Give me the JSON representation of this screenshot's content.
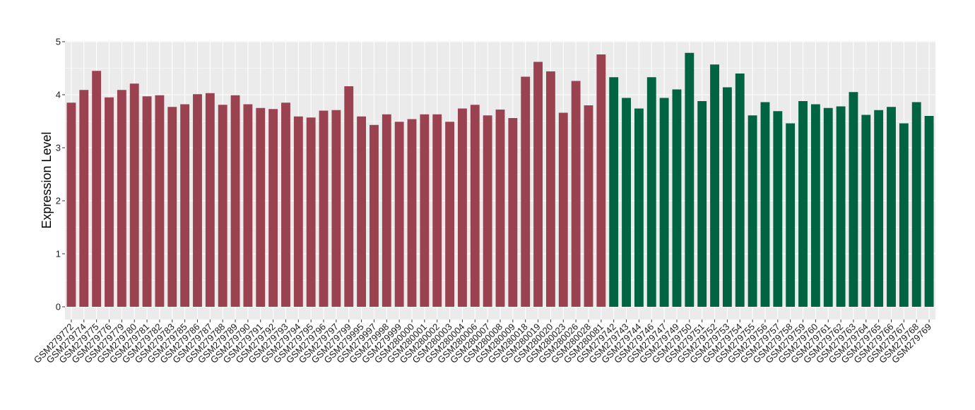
{
  "chart_data": {
    "type": "bar",
    "title": "",
    "xlabel": "",
    "ylabel": "Expression Level",
    "ylim": [
      0,
      5
    ],
    "yticks": [
      "0",
      "1",
      "2",
      "3",
      "4",
      "5"
    ],
    "grid": true,
    "colors": {
      "group1": "#9b4250",
      "group2": "#006341",
      "panel": "#ebebeb",
      "grid": "#ffffff"
    },
    "categories": [
      "GSM279772",
      "GSM279774",
      "GSM279775",
      "GSM279776",
      "GSM279779",
      "GSM279780",
      "GSM279781",
      "GSM279782",
      "GSM279783",
      "GSM279785",
      "GSM279786",
      "GSM279787",
      "GSM279788",
      "GSM279789",
      "GSM279790",
      "GSM279791",
      "GSM279792",
      "GSM279793",
      "GSM279794",
      "GSM279795",
      "GSM279796",
      "GSM279797",
      "GSM279799",
      "GSM279995",
      "GSM279997",
      "GSM279998",
      "GSM279999",
      "GSM280000",
      "GSM280001",
      "GSM280002",
      "GSM280003",
      "GSM280004",
      "GSM280006",
      "GSM280007",
      "GSM280008",
      "GSM280009",
      "GSM280018",
      "GSM280019",
      "GSM280020",
      "GSM280023",
      "GSM280026",
      "GSM280028",
      "GSM280081",
      "GSM279742",
      "GSM279743",
      "GSM279744",
      "GSM279746",
      "GSM279747",
      "GSM279749",
      "GSM279750",
      "GSM279751",
      "GSM279752",
      "GSM279753",
      "GSM279754",
      "GSM279755",
      "GSM279756",
      "GSM279757",
      "GSM279758",
      "GSM279759",
      "GSM279760",
      "GSM279761",
      "GSM279762",
      "GSM279763",
      "GSM279764",
      "GSM279765",
      "GSM279766",
      "GSM279767",
      "GSM279768",
      "GSM279769"
    ],
    "values": [
      3.85,
      4.09,
      4.45,
      3.95,
      4.09,
      4.21,
      3.97,
      3.99,
      3.77,
      3.82,
      4.01,
      4.03,
      3.81,
      3.99,
      3.82,
      3.75,
      3.73,
      3.85,
      3.59,
      3.57,
      3.7,
      3.71,
      4.16,
      3.59,
      3.43,
      3.63,
      3.49,
      3.54,
      3.63,
      3.63,
      3.49,
      3.74,
      3.81,
      3.61,
      3.72,
      3.56,
      4.34,
      4.62,
      4.44,
      3.66,
      4.26,
      3.8,
      4.76,
      4.33,
      3.94,
      3.74,
      4.33,
      3.94,
      4.1,
      4.79,
      3.88,
      4.57,
      4.14,
      4.4,
      3.61,
      3.86,
      3.69,
      3.46,
      3.88,
      3.82,
      3.75,
      3.78,
      4.05,
      3.62,
      3.71,
      3.77,
      3.46,
      3.86,
      3.6
    ],
    "groups": [
      1,
      1,
      1,
      1,
      1,
      1,
      1,
      1,
      1,
      1,
      1,
      1,
      1,
      1,
      1,
      1,
      1,
      1,
      1,
      1,
      1,
      1,
      1,
      1,
      1,
      1,
      1,
      1,
      1,
      1,
      1,
      1,
      1,
      1,
      1,
      1,
      1,
      1,
      1,
      1,
      1,
      1,
      1,
      2,
      2,
      2,
      2,
      2,
      2,
      2,
      2,
      2,
      2,
      2,
      2,
      2,
      2,
      2,
      2,
      2,
      2,
      2,
      2,
      2,
      2,
      2,
      2,
      2,
      2
    ]
  }
}
